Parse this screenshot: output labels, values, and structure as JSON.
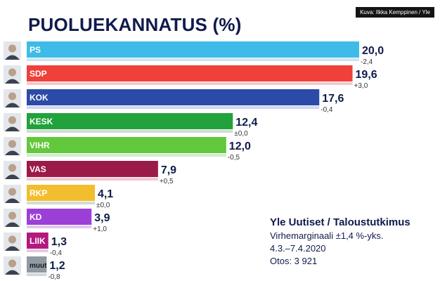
{
  "header": {
    "title": "PUOLUEKANNATUS (%)",
    "credit": "Kuva: Ilkka Kemppinen / Yle"
  },
  "source": {
    "title": "Yle Uutiset / Taloustutkimus",
    "lines": [
      "Virhemarginaali ±1,4 %-yks.",
      "4.3.–7.4.2020",
      "Otos: 3 921"
    ]
  },
  "colors": {
    "text_dark": "#0f1b4c",
    "change_bar": "#cfd8dc"
  },
  "chart_data": {
    "type": "bar",
    "orientation": "horizontal",
    "title": "PUOLUEKANNATUS (%)",
    "xlabel": "",
    "ylabel": "",
    "xlim": [
      0,
      20.0
    ],
    "categories": [
      "PS",
      "SDP",
      "KOK",
      "KESK",
      "VIHR",
      "VAS",
      "RKP",
      "KD",
      "LIIK",
      "muut"
    ],
    "values": [
      20.0,
      19.6,
      17.6,
      12.4,
      12.0,
      7.9,
      4.1,
      3.9,
      1.3,
      1.2
    ],
    "value_labels": [
      "20,0",
      "19,6",
      "17,6",
      "12,4",
      "12,0",
      "7,9",
      "4,1",
      "3,9",
      "1,3",
      "1,2"
    ],
    "change_values": [
      -2.4,
      3.0,
      -0.4,
      0.0,
      -0.5,
      0.5,
      0.0,
      1.0,
      -0.4,
      -0.8
    ],
    "change_labels": [
      "-2,4",
      "+3,0",
      "-0,4",
      "±0,0",
      "-0,5",
      "+0,5",
      "±0,0",
      "+1,0",
      "-0,4",
      "-0,8"
    ],
    "bar_colors": [
      "#3ebbe8",
      "#f0403a",
      "#2c4aa8",
      "#22a23c",
      "#62c83c",
      "#9a1a48",
      "#f2be2e",
      "#9b3fd6",
      "#b2187e",
      "#8f9aa3"
    ],
    "change_colors": [
      "#cde6f0",
      "#f5c8cc",
      "#cfd8ec",
      "#cfdcd2",
      "#d2ecd2",
      "#f0c8d2",
      "#d2dcd4",
      "#e0c8ee",
      "#eac8de",
      "#d0d8dc"
    ],
    "grid": false,
    "legend": "none"
  }
}
